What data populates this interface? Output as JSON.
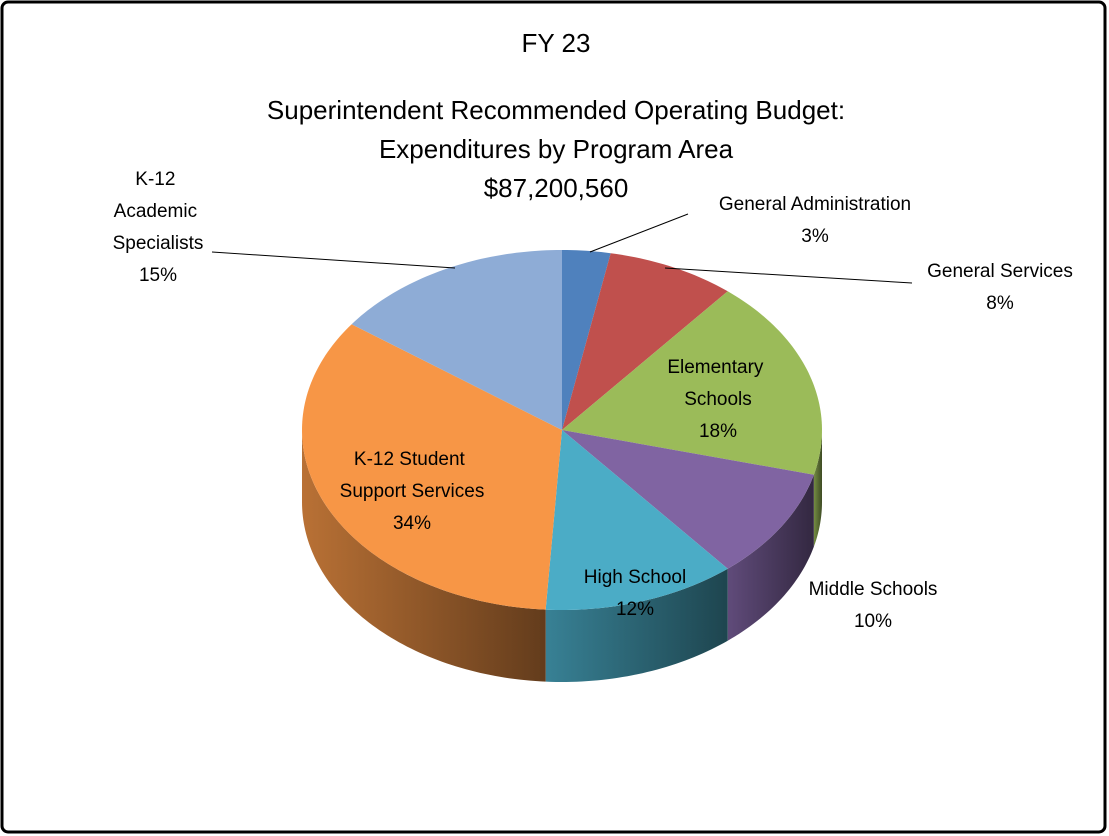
{
  "chart_data": {
    "type": "pie3d",
    "title": [
      "FY 23",
      "Superintendent Recommended Operating Budget:",
      "Expenditures by Program Area",
      "$87,200,560"
    ],
    "categories": [
      "General Administration",
      "General Services",
      "Elementary Schools",
      "Middle Schools",
      "High School",
      "K-12 Student Support Services",
      "K-12 Academic Specialists"
    ],
    "values": [
      3,
      8,
      18,
      10,
      12,
      34,
      15
    ],
    "value_labels": [
      "3%",
      "8%",
      "18%",
      "10%",
      "12%",
      "34%",
      "15%"
    ],
    "colors": [
      "#4f81bd",
      "#c0504d",
      "#9bbb59",
      "#8064a2",
      "#4bacc6",
      "#f79646",
      "#8eacd6"
    ]
  }
}
